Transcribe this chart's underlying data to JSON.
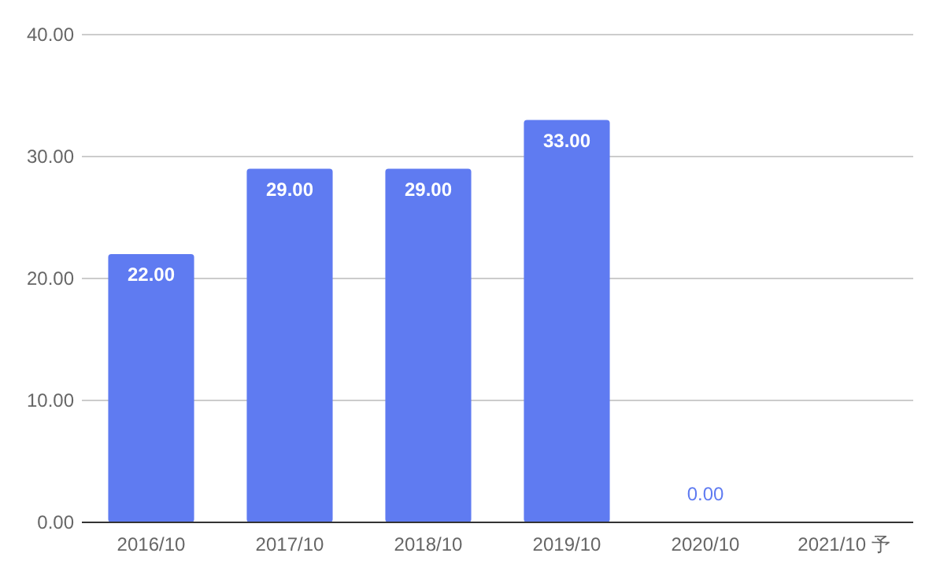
{
  "chart_data": {
    "type": "bar",
    "categories": [
      "2016/10",
      "2017/10",
      "2018/10",
      "2019/10",
      "2020/10",
      "2021/10 予"
    ],
    "values": [
      22,
      29,
      29,
      33,
      0,
      null
    ],
    "value_labels": [
      "22.00",
      "29.00",
      "29.00",
      "33.00",
      "0.00",
      null
    ],
    "color": "#5f7bf1",
    "ylim": [
      0,
      40
    ],
    "yticks": [
      {
        "value": 0,
        "label": "0.00"
      },
      {
        "value": 10,
        "label": "10.00"
      },
      {
        "value": 20,
        "label": "20.00"
      },
      {
        "value": 30,
        "label": "30.00"
      },
      {
        "value": 40,
        "label": "40.00"
      }
    ],
    "grid": "y"
  }
}
